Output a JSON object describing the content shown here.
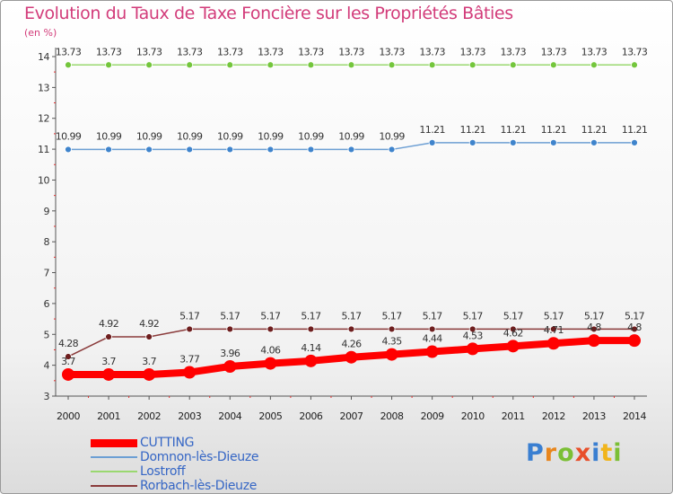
{
  "title": "Evolution du Taux de Taxe Foncière sur les Propriétés Bâties",
  "subtitle": "(en %)",
  "logo": [
    "P",
    "r",
    "o",
    "x",
    "i",
    "t",
    "i"
  ],
  "chart_data": {
    "type": "line",
    "x": [
      2000,
      2001,
      2002,
      2003,
      2004,
      2005,
      2006,
      2007,
      2008,
      2009,
      2010,
      2011,
      2012,
      2013,
      2014
    ],
    "ylim": [
      3,
      14
    ],
    "yticks": [
      3,
      4,
      5,
      6,
      7,
      8,
      9,
      10,
      11,
      12,
      13,
      14
    ],
    "grid": false,
    "legend_position": "bottom-left",
    "series": [
      {
        "name": "CUTTING",
        "color": "#ff0000",
        "thick": true,
        "values": [
          3.7,
          3.7,
          3.7,
          3.77,
          3.96,
          4.06,
          4.14,
          4.26,
          4.35,
          4.44,
          4.53,
          4.62,
          4.71,
          4.8,
          4.8
        ],
        "labels": [
          "3.7",
          "3.7",
          "3.7",
          "3.77",
          "3.96",
          "4.06",
          "4.14",
          "4.26",
          "4.35",
          "4.44",
          "4.53",
          "4.62",
          "4.71",
          "4.8",
          "4.8"
        ]
      },
      {
        "name": "Domnon-lès-Dieuze",
        "color": "#6c9fd4",
        "marker": "#3f84cc",
        "values": [
          10.99,
          10.99,
          10.99,
          10.99,
          10.99,
          10.99,
          10.99,
          10.99,
          10.99,
          11.21,
          11.21,
          11.21,
          11.21,
          11.21,
          11.21
        ],
        "labels": [
          "10.99",
          "10.99",
          "10.99",
          "10.99",
          "10.99",
          "10.99",
          "10.99",
          "10.99",
          "10.99",
          "11.21",
          "11.21",
          "11.21",
          "11.21",
          "11.21",
          "11.21"
        ]
      },
      {
        "name": "Lostroff",
        "color": "#9ad870",
        "marker": "#74c63c",
        "values": [
          13.73,
          13.73,
          13.73,
          13.73,
          13.73,
          13.73,
          13.73,
          13.73,
          13.73,
          13.73,
          13.73,
          13.73,
          13.73,
          13.73,
          13.73
        ],
        "labels": [
          "13.73",
          "13.73",
          "13.73",
          "13.73",
          "13.73",
          "13.73",
          "13.73",
          "13.73",
          "13.73",
          "13.73",
          "13.73",
          "13.73",
          "13.73",
          "13.73",
          "13.73"
        ]
      },
      {
        "name": "Rorbach-lès-Dieuze",
        "color": "#8a3a3a",
        "marker": "#6e1f1f",
        "values": [
          4.28,
          4.92,
          4.92,
          5.17,
          5.17,
          5.17,
          5.17,
          5.17,
          5.17,
          5.17,
          5.17,
          5.17,
          5.17,
          5.17,
          5.17
        ],
        "labels": [
          "4.28",
          "4.92",
          "4.92",
          "5.17",
          "5.17",
          "5.17",
          "5.17",
          "5.17",
          "5.17",
          "5.17",
          "5.17",
          "5.17",
          "5.17",
          "5.17",
          "5.17"
        ]
      }
    ]
  }
}
